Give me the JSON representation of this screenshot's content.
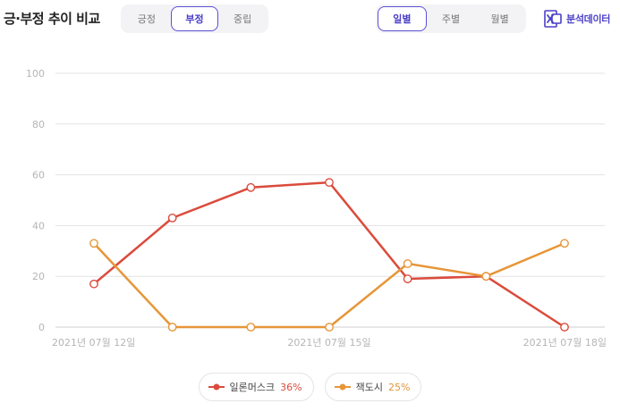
{
  "header": {
    "title": "긍·부정 추이 비교",
    "sentiment_tabs": [
      {
        "label": "긍정",
        "active": false
      },
      {
        "label": "부정",
        "active": true
      },
      {
        "label": "중립",
        "active": false
      }
    ],
    "period_tabs": [
      {
        "label": "일별",
        "active": true
      },
      {
        "label": "주별",
        "active": false
      },
      {
        "label": "월별",
        "active": false
      }
    ],
    "export_label": "분석데이터",
    "export_icon": "excel-icon"
  },
  "colors": {
    "accent": "#4b3fc8",
    "series1": "#db4b3c",
    "series2": "#e69638",
    "grid": "#e3e3e3",
    "tick": "#b5b5b5"
  },
  "chart_data": {
    "type": "line",
    "x": [
      "2021-07-12",
      "2021-07-13",
      "2021-07-14",
      "2021-07-15",
      "2021-07-16",
      "2021-07-17",
      "2021-07-18"
    ],
    "x_tick_labels": [
      "2021년 07월 12일",
      "2021년 07월 15일",
      "2021년 07월 18일"
    ],
    "x_tick_indices": [
      0,
      3,
      6
    ],
    "y_ticks": [
      0,
      20,
      40,
      60,
      80,
      100
    ],
    "ylim": [
      0,
      100
    ],
    "grid": true,
    "legend_position": "bottom-center",
    "series": [
      {
        "name": "일론머스크",
        "percent_label": "36%",
        "color": "#db4b3c",
        "values": [
          17,
          43,
          55,
          57,
          19,
          20,
          0
        ]
      },
      {
        "name": "잭도시",
        "percent_label": "25%",
        "color": "#e69638",
        "values": [
          33,
          0,
          0,
          0,
          25,
          20,
          33
        ]
      }
    ]
  }
}
